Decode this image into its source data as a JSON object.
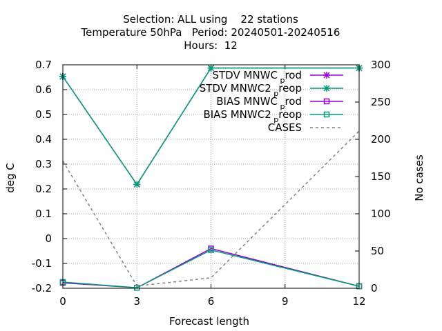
{
  "chart_data": {
    "type": "line",
    "title_lines": [
      "Selection: ALL using    22 stations",
      "Temperature 50hPa   Period: 20240501-20240516",
      "Hours:  12"
    ],
    "xlabel": "Forecast length",
    "ylabel": "deg C",
    "y2label": "No cases",
    "x_ticks": [
      0,
      3,
      6,
      9,
      12
    ],
    "y_ticks": [
      "0.7",
      "0.6",
      "0.5",
      "0.4",
      "0.3",
      "0.2",
      "0.1",
      "0",
      "-0.1",
      "-0.2"
    ],
    "y2_ticks": [
      "300",
      "250",
      "200",
      "150",
      "100",
      "50",
      "0"
    ],
    "xlim": [
      0,
      12
    ],
    "ylim": [
      -0.2,
      0.7
    ],
    "y2lim": [
      0,
      300
    ],
    "grid": true,
    "legend_position": "top-right",
    "series": [
      {
        "name": "STDV MNWC_prod",
        "label_main": "STDV MNWC",
        "label_sub": "p",
        "label_tail": "rod",
        "axis": "y1",
        "color": "#9400d3",
        "marker": "star",
        "dash": "",
        "x": [
          0,
          3,
          6,
          12
        ],
        "y": [
          0.653,
          0.218,
          0.687,
          0.687
        ]
      },
      {
        "name": "STDV MNWC2_preop",
        "label_main": "STDV MNWC2",
        "label_sub": "p",
        "label_tail": "reop",
        "axis": "y1",
        "color": "#009e73",
        "marker": "star",
        "dash": "",
        "x": [
          0,
          3,
          6,
          12
        ],
        "y": [
          0.653,
          0.218,
          0.687,
          0.687
        ]
      },
      {
        "name": "BIAS MNWC_prod",
        "label_main": "BIAS MNWC",
        "label_sub": "p",
        "label_tail": "rod",
        "axis": "y1",
        "color": "#9400d3",
        "marker": "square",
        "dash": "",
        "x": [
          0,
          3,
          6,
          12
        ],
        "y": [
          -0.178,
          -0.198,
          -0.04,
          -0.192
        ]
      },
      {
        "name": "BIAS MNWC2_preop",
        "label_main": "BIAS MNWC2",
        "label_sub": "p",
        "label_tail": "reop",
        "axis": "y1",
        "color": "#009e73",
        "marker": "square",
        "dash": "",
        "x": [
          0,
          3,
          6,
          12
        ],
        "y": [
          -0.175,
          -0.198,
          -0.046,
          -0.192
        ]
      },
      {
        "name": "CASES",
        "label_main": "CASES",
        "label_sub": "",
        "label_tail": "",
        "axis": "y2",
        "color": "#808080",
        "marker": "none",
        "dash": "4,4",
        "x": [
          0,
          3,
          6,
          12
        ],
        "y": [
          171,
          3,
          14,
          211
        ]
      }
    ]
  }
}
